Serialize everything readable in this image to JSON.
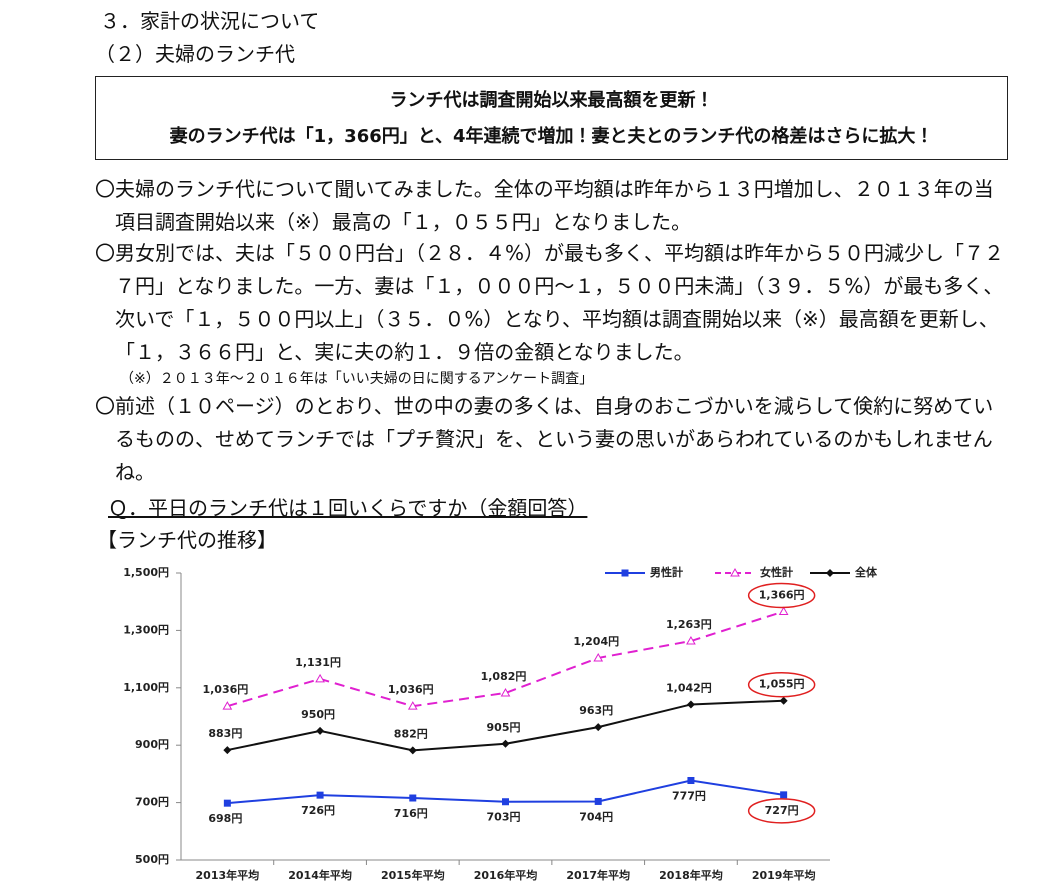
{
  "header": {
    "section": "３．家計の状況について",
    "subsection": "（２）夫婦のランチ代"
  },
  "box": {
    "line1": "ランチ代は調査開始以来最高額を更新！",
    "line2": "妻のランチ代は「1，366円」と、4年連続で増加！妻と夫とのランチ代の格差はさらに拡大！"
  },
  "paragraphs": [
    "〇夫婦のランチ代について聞いてみました。全体の平均額は昨年から１３円増加し、２０１３年の当項目調査開始以来（※）最高の「１，０５５円」となりました。",
    "〇男女別では、夫は「５００円台」（２８．４%）が最も多く、平均額は昨年から５０円減少し「７２７円」となりました。一方、妻は「１，０００円～１，５００円未満」（３９．５%）が最も多く、次いで「１，５００円以上」（３５．０%）となり、平均額は調査開始以来（※）最高額を更新し、「１，３６６円」と、実に夫の約１．９倍の金額となりました。",
    "〇前述（１０ページ）のとおり、世の中の妻の多くは、自身のおこづかいを減らして倹約に努めているものの、せめてランチでは「プチ贅沢」を、という妻の思いがあらわれているのかもしれませんね。"
  ],
  "note": "（※）２０１３年～２０１６年は「いい夫婦の日に関するアンケート調査」",
  "question": "Ｑ．平日のランチ代は１回いくらですか（金額回答）",
  "chart_heading": "【ランチ代の推移】",
  "chart_data": {
    "type": "line",
    "categories": [
      "2013年平均",
      "2014年平均",
      "2015年平均",
      "2016年平均",
      "2017年平均",
      "2018年平均",
      "2019年平均"
    ],
    "ylim": [
      500,
      1500
    ],
    "yticks": [
      {
        "value": 500,
        "label": "500円"
      },
      {
        "value": 700,
        "label": "700円"
      },
      {
        "value": 900,
        "label": "900円"
      },
      {
        "value": 1100,
        "label": "1,100円"
      },
      {
        "value": 1300,
        "label": "1,300円"
      },
      {
        "value": 1500,
        "label": "1,500円"
      }
    ],
    "legend": "top-right",
    "series": [
      {
        "name": "男性計",
        "color": "#1f3fe0",
        "marker": "square",
        "dashed": false,
        "values": [
          698,
          726,
          716,
          703,
          704,
          777,
          727
        ],
        "value_labels": [
          "698円",
          "726円",
          "716円",
          "703円",
          "704円",
          "777円",
          "727円"
        ]
      },
      {
        "name": "女性計",
        "color": "#e020d0",
        "marker": "triangle",
        "dashed": true,
        "values": [
          1036,
          1131,
          1036,
          1082,
          1204,
          1263,
          1366
        ],
        "value_labels": [
          "1,036円",
          "1,131円",
          "1,036円",
          "1,082円",
          "1,204円",
          "1,263円",
          "1,366円"
        ]
      },
      {
        "name": "全体",
        "color": "#111111",
        "marker": "diamond",
        "dashed": false,
        "values": [
          883,
          950,
          882,
          905,
          963,
          1042,
          1055
        ],
        "value_labels": [
          "883円",
          "950円",
          "882円",
          "905円",
          "963円",
          "1,042円",
          "1,055円"
        ]
      }
    ]
  }
}
